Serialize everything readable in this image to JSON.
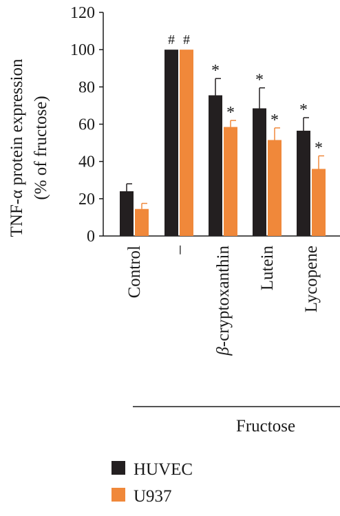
{
  "chart_data": {
    "type": "bar",
    "ylabel_line1": "TNF-α protein expression",
    "ylabel_line2": "(% of fructose)",
    "ylim": [
      0,
      120
    ],
    "yticks": [
      0,
      20,
      40,
      60,
      80,
      100,
      120
    ],
    "categories": [
      "Control",
      "–",
      "β-cryptoxanthin",
      "Lutein",
      "Lycopene"
    ],
    "series": [
      {
        "name": "HUVEC",
        "color": "#231f20",
        "values": [
          24,
          100,
          75.5,
          68.5,
          56.5
        ],
        "errors": [
          4,
          0,
          9,
          11,
          7
        ],
        "markers": [
          "",
          "#",
          "*",
          "*",
          "*"
        ]
      },
      {
        "name": "U937",
        "color": "#f0883a",
        "values": [
          14.5,
          100,
          58.5,
          51.5,
          36
        ],
        "errors": [
          3,
          0,
          3.5,
          6.5,
          7
        ],
        "markers": [
          "",
          "#",
          "*",
          "*",
          "*"
        ]
      }
    ],
    "group_label": "Fructose",
    "grid": false,
    "legend_position": "bottom-left"
  }
}
